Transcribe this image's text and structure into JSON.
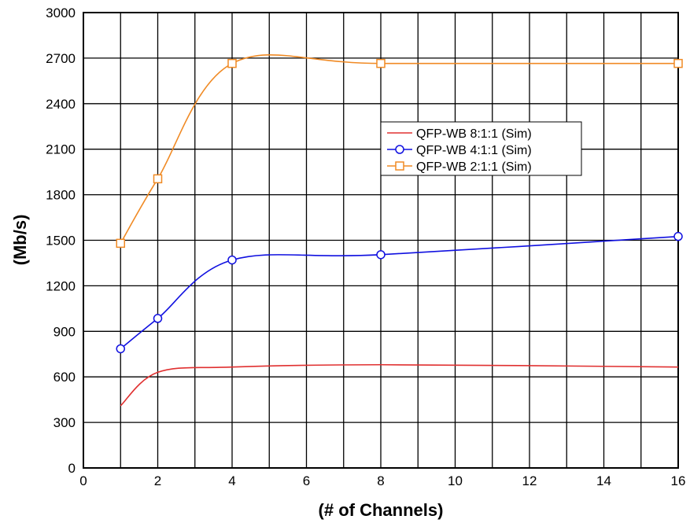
{
  "chart_data": {
    "type": "line",
    "title": "",
    "xlabel": "(# of Channels)",
    "ylabel": "(Mb/s)",
    "xlim": [
      0,
      16
    ],
    "ylim": [
      0,
      3000
    ],
    "x_ticks": [
      0,
      2,
      4,
      6,
      8,
      10,
      12,
      14,
      16
    ],
    "y_ticks": [
      0,
      300,
      600,
      900,
      1200,
      1500,
      1800,
      2100,
      2400,
      2700,
      3000
    ],
    "grid": true,
    "legend_position": "right-upper",
    "series": [
      {
        "name": "QFP-WB 8:1:1 (Sim)",
        "color": "#e03030",
        "marker": "none",
        "x": [
          1,
          2,
          4,
          8,
          16
        ],
        "y": [
          410,
          630,
          665,
          680,
          665
        ]
      },
      {
        "name": "QFP-WB 4:1:1 (Sim)",
        "color": "#1010e0",
        "marker": "circle",
        "x": [
          1,
          2,
          4,
          8,
          16
        ],
        "y": [
          785,
          985,
          1370,
          1405,
          1525
        ]
      },
      {
        "name": "QFP-WB 2:1:1 (Sim)",
        "color": "#f08a24",
        "marker": "square",
        "x": [
          1,
          2,
          4,
          8,
          16
        ],
        "y": [
          1480,
          1905,
          2665,
          2665,
          2665
        ]
      }
    ]
  }
}
